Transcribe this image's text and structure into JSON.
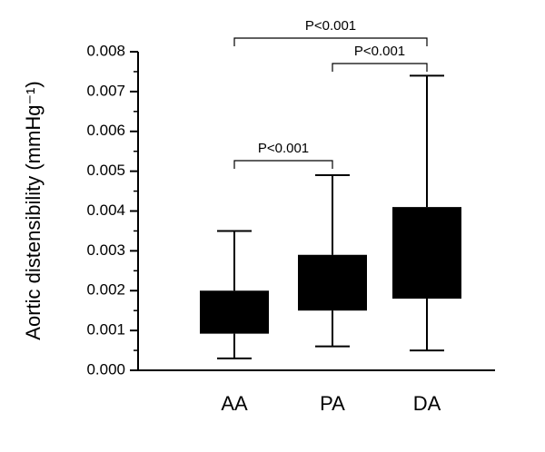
{
  "chart_data": {
    "type": "box",
    "y_label": "Aortic distensibility (mmHg⁻¹)",
    "categories": [
      "AA",
      "PA",
      "DA"
    ],
    "whisker_low": [
      0.0003,
      0.0006,
      0.0005
    ],
    "q1": [
      0.00092,
      0.0015,
      0.0018
    ],
    "q3": [
      0.002,
      0.0029,
      0.0041
    ],
    "whisker_high": [
      0.0035,
      0.0049,
      0.0074
    ],
    "color": "#000000",
    "ylim": [
      0,
      0.008
    ],
    "yticks": [
      {
        "value": 0,
        "label": "0.000"
      },
      {
        "value": 0.001,
        "label": "0.001"
      },
      {
        "value": 0.002,
        "label": "0.002"
      },
      {
        "value": 0.003,
        "label": "0.003"
      },
      {
        "value": 0.004,
        "label": "0.004"
      },
      {
        "value": 0.005,
        "label": "0.005"
      },
      {
        "value": 0.006,
        "label": "0.006"
      },
      {
        "value": 0.007,
        "label": "0.007"
      },
      {
        "value": 0.008,
        "label": "0.008"
      }
    ],
    "yminorticks": [
      0.0005,
      0.0015,
      0.0025,
      0.0035,
      0.0045,
      0.0055,
      0.0065,
      0.0075
    ],
    "brackets": [
      {
        "categories": [
          "AA",
          "PA"
        ],
        "label": "P<0.001"
      },
      {
        "categories": [
          "PA",
          "DA"
        ],
        "label": "P<0.001"
      },
      {
        "categories": [
          "AA",
          "DA"
        ],
        "label": "P<0.001"
      }
    ]
  }
}
